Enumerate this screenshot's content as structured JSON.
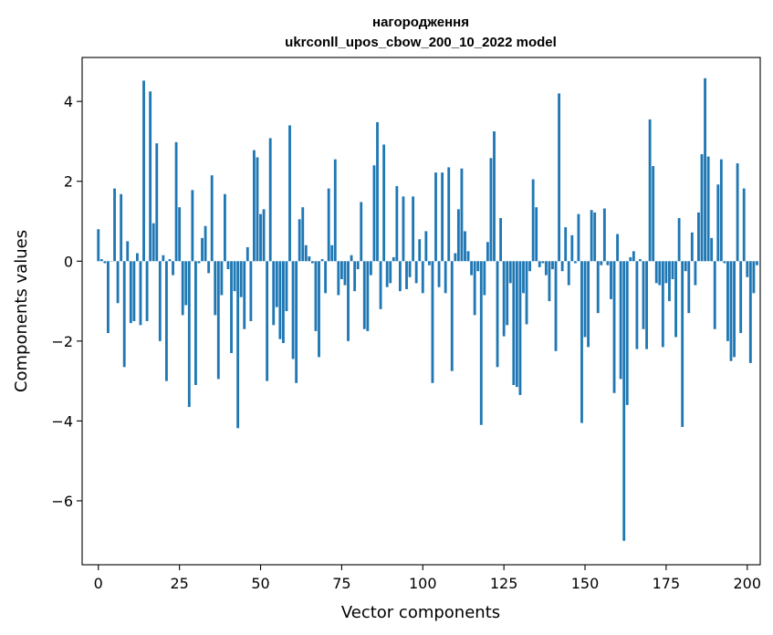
{
  "chart_data": {
    "type": "bar",
    "title_line1": "нагородження",
    "title_line2": "ukrconll_upos_cbow_200_10_2022 model",
    "xlabel": "Vector components",
    "ylabel": "Components values",
    "xlim": [
      -5,
      204
    ],
    "ylim": [
      -7.6,
      5.1
    ],
    "xticks": [
      0,
      25,
      50,
      75,
      100,
      125,
      150,
      175,
      200
    ],
    "yticks": [
      4,
      2,
      0,
      -2,
      -4,
      -6
    ],
    "ytick_labels": [
      "4",
      "2",
      "0",
      "−2",
      "−4",
      "−6"
    ],
    "bar_color": "#1f77b4",
    "values": [
      0.8,
      0.05,
      -0.05,
      -1.8,
      0.0,
      1.82,
      -1.05,
      1.68,
      -2.65,
      0.5,
      -1.55,
      -1.5,
      0.2,
      -1.6,
      4.52,
      -1.5,
      4.25,
      0.95,
      2.95,
      -2.0,
      0.15,
      -3.0,
      0.05,
      -0.35,
      2.98,
      1.35,
      -1.35,
      -1.1,
      -3.65,
      1.78,
      -3.1,
      -0.05,
      0.58,
      0.88,
      -0.3,
      2.15,
      -1.35,
      -2.95,
      -0.85,
      1.68,
      -0.2,
      -2.3,
      -0.75,
      -4.18,
      -0.9,
      -1.7,
      0.35,
      -1.5,
      2.78,
      2.6,
      1.18,
      1.3,
      -3.0,
      3.08,
      -1.6,
      -1.15,
      -1.95,
      -2.05,
      -1.25,
      3.4,
      -2.45,
      -3.05,
      1.05,
      1.35,
      0.4,
      0.12,
      -0.05,
      -1.75,
      -2.4,
      0.05,
      -0.8,
      1.82,
      0.4,
      2.55,
      -0.85,
      -0.45,
      -0.6,
      -2.0,
      0.15,
      -0.75,
      -0.2,
      1.48,
      -1.7,
      -1.75,
      -0.35,
      2.4,
      3.48,
      -1.2,
      2.92,
      -0.65,
      -0.55,
      0.1,
      1.88,
      -0.75,
      1.62,
      -0.7,
      -0.4,
      1.62,
      -0.55,
      0.55,
      -0.8,
      0.75,
      -0.1,
      -3.05,
      2.22,
      -0.65,
      2.22,
      -0.8,
      2.35,
      -2.75,
      0.2,
      1.3,
      2.32,
      0.75,
      0.25,
      -0.35,
      -1.35,
      -0.25,
      -4.1,
      -0.85,
      0.48,
      2.58,
      3.25,
      -2.65,
      1.08,
      -1.88,
      -1.6,
      -0.55,
      -3.1,
      -3.15,
      -3.35,
      -0.8,
      -1.58,
      -0.25,
      2.05,
      1.35,
      -0.15,
      -0.05,
      -0.35,
      -1.0,
      -0.2,
      -2.25,
      4.2,
      -0.25,
      0.85,
      -0.6,
      0.65,
      -0.05,
      1.18,
      -4.05,
      -1.9,
      -2.15,
      1.28,
      1.22,
      -1.3,
      -0.1,
      1.32,
      -0.1,
      -0.95,
      -3.3,
      0.68,
      -2.95,
      -7.0,
      -3.6,
      0.1,
      0.25,
      -2.2,
      0.05,
      -1.7,
      -2.2,
      3.55,
      2.38,
      -0.55,
      -0.6,
      -2.15,
      -0.55,
      -1.0,
      -0.45,
      -1.9,
      1.08,
      -4.15,
      -0.25,
      -1.3,
      0.72,
      -0.6,
      1.22,
      2.68,
      4.58,
      2.62,
      0.58,
      -1.7,
      1.92,
      2.55,
      -0.05,
      -2.0,
      -2.5,
      -2.4,
      2.45,
      -1.8,
      1.82,
      -0.4,
      -2.55,
      -0.8,
      -0.1
    ]
  }
}
